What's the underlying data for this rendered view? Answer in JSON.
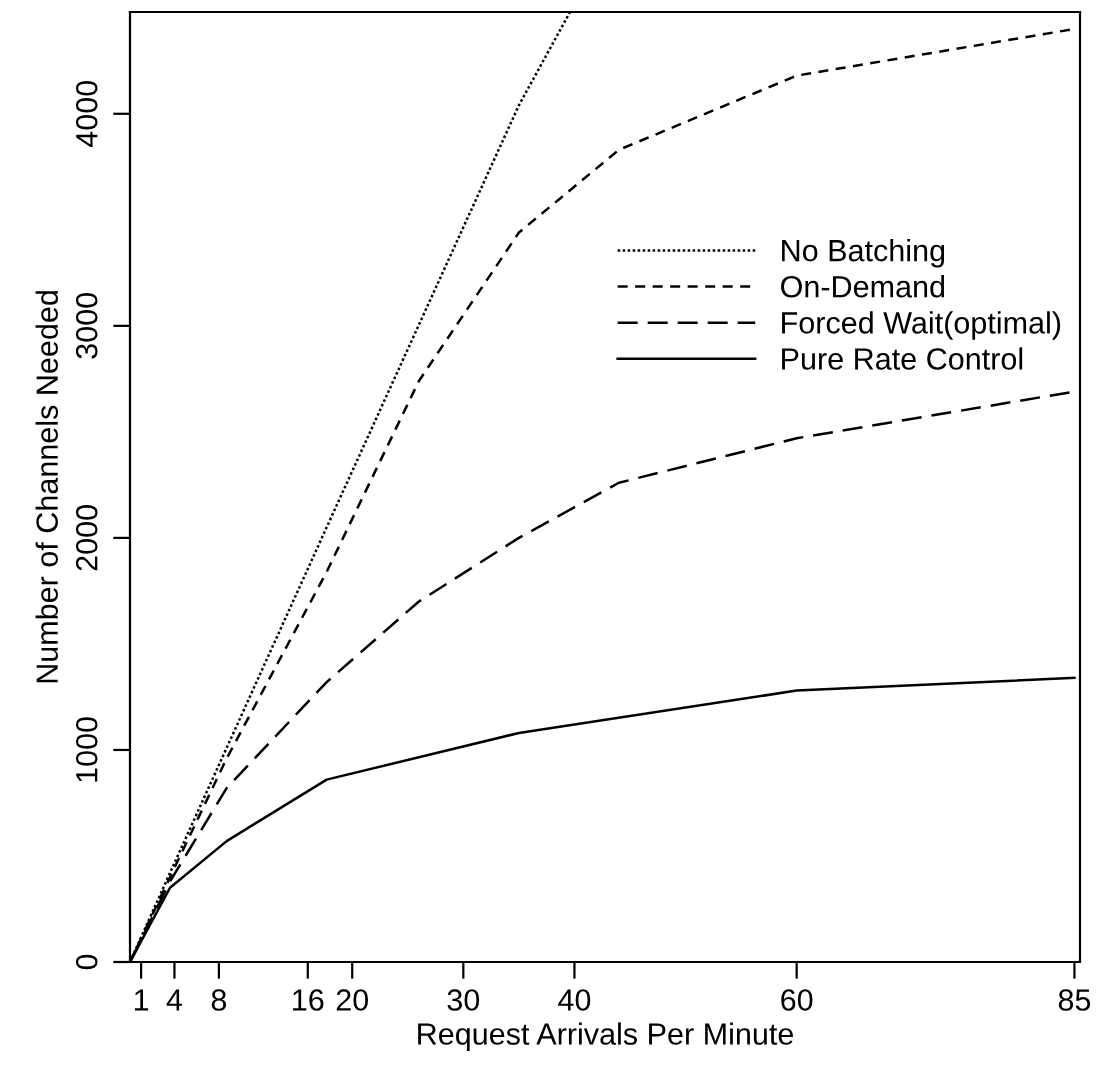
{
  "chart_data": {
    "type": "line",
    "xlabel": "Request Arrivals Per Minute",
    "ylabel": "Number of Channels Needed",
    "xlim": [
      0,
      85.5
    ],
    "xticks": [
      1,
      4,
      8,
      16,
      20,
      30,
      40,
      60,
      85
    ],
    "ylim": [
      0,
      4480
    ],
    "yticks": [
      0,
      1000,
      2000,
      3000,
      4000
    ],
    "grid": false,
    "legend": "top right",
    "marker": "none",
    "series": [
      {
        "name": "No Batching",
        "color": "#000000",
        "line_style": "dotted",
        "x": [
          0,
          3.6,
          8.7,
          17.7,
          35,
          39.6
        ],
        "values": [
          0,
          420,
          1010,
          2050,
          4040,
          4480
        ]
      },
      {
        "name": "On-Demand",
        "color": "#000000",
        "line_style": "dashed",
        "x": [
          0,
          3.6,
          8.7,
          17.7,
          26,
          35,
          44,
          60,
          85
        ],
        "values": [
          0,
          400,
          960,
          1840,
          2740,
          3440,
          3830,
          4180,
          4400
        ]
      },
      {
        "name": "Forced Wait(optimal)",
        "color": "#000000",
        "line_style": "dashed",
        "x": [
          0,
          3.6,
          8.7,
          17.7,
          26,
          35,
          44,
          60,
          85
        ],
        "values": [
          0,
          380,
          820,
          1320,
          1700,
          2000,
          2260,
          2470,
          2690
        ]
      },
      {
        "name": "Pure Rate Control",
        "color": "#000000",
        "line_style": "solid",
        "x": [
          0,
          3.6,
          8.7,
          17.7,
          35,
          60,
          85
        ],
        "values": [
          0,
          350,
          570,
          860,
          1080,
          1280,
          1340
        ]
      }
    ]
  }
}
